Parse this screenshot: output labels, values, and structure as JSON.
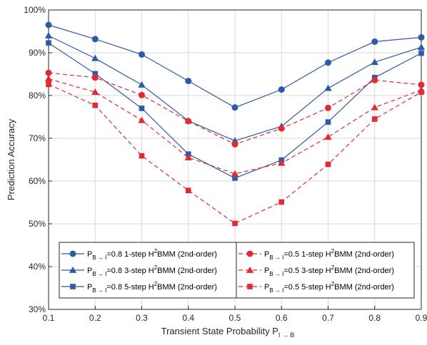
{
  "chart_data": {
    "type": "line",
    "title": "",
    "xlabel": "Transient State Probability P",
    "xlabel_subscript": "I → B",
    "ylabel": "Prediction Accuracy",
    "x": [
      0.1,
      0.2,
      0.3,
      0.4,
      0.5,
      0.6,
      0.7,
      0.8,
      0.9
    ],
    "xlim": [
      0.1,
      0.9
    ],
    "ylim": [
      30,
      100
    ],
    "x_ticks": [
      "0.1",
      "0.2",
      "0.3",
      "0.4",
      "0.5",
      "0.6",
      "0.7",
      "0.8",
      "0.9"
    ],
    "y_ticks": [
      "30%",
      "40%",
      "50%",
      "60%",
      "70%",
      "80%",
      "90%",
      "100%"
    ],
    "y_tick_values": [
      30,
      40,
      50,
      60,
      70,
      80,
      90,
      100
    ],
    "grid": true,
    "legend_position": "bottom-center",
    "legend_columns": 2,
    "series": [
      {
        "label_prefix": "P",
        "label_sub": "B → I",
        "label_mid": "=0.8 1-step H",
        "label_sup": "2",
        "label_end": "BMM (2nd-order)",
        "color": "#2e5aa8",
        "dashed": false,
        "marker": "circle",
        "values": [
          96.5,
          93.2,
          89.6,
          83.4,
          77.2,
          81.4,
          87.7,
          92.6,
          93.6
        ]
      },
      {
        "label_prefix": "P",
        "label_sub": "B → I",
        "label_mid": "=0.8 3-step H",
        "label_sup": "2",
        "label_end": "BMM (2nd-order)",
        "color": "#2e5aa8",
        "dashed": false,
        "marker": "triangle",
        "values": [
          94.0,
          88.7,
          82.5,
          74.1,
          69.4,
          72.8,
          81.7,
          87.8,
          91.3
        ]
      },
      {
        "label_prefix": "P",
        "label_sub": "B → I",
        "label_mid": "=0.8 5-step H",
        "label_sup": "2",
        "label_end": "BMM (2nd-order)",
        "color": "#2e5aa8",
        "dashed": false,
        "marker": "square",
        "values": [
          92.3,
          85.1,
          77.0,
          66.3,
          60.7,
          64.9,
          73.8,
          84.2,
          89.9
        ]
      },
      {
        "label_prefix": "P",
        "label_sub": "B → I",
        "label_mid": "=0.5 1-step H",
        "label_sup": "2",
        "label_end": "BMM (2nd-order)",
        "color": "#e02b35",
        "dashed": true,
        "marker": "circle",
        "values": [
          85.3,
          84.2,
          80.1,
          74.0,
          68.6,
          72.3,
          77.1,
          83.6,
          82.5
        ]
      },
      {
        "label_prefix": "P",
        "label_sub": "B → I",
        "label_mid": "=0.5 3-step H",
        "label_sup": "2",
        "label_end": "BMM (2nd-order)",
        "color": "#e02b35",
        "dashed": true,
        "marker": "triangle",
        "values": [
          83.9,
          80.8,
          74.2,
          65.5,
          61.7,
          64.2,
          70.3,
          77.2,
          81.3
        ]
      },
      {
        "label_prefix": "P",
        "label_sub": "B → I",
        "label_mid": "=0.5 5-step H",
        "label_sup": "2",
        "label_end": "BMM (2nd-order)",
        "color": "#e02b35",
        "dashed": true,
        "marker": "square",
        "values": [
          82.6,
          77.7,
          65.9,
          57.8,
          50.1,
          55.1,
          63.9,
          74.5,
          80.8
        ]
      }
    ]
  }
}
